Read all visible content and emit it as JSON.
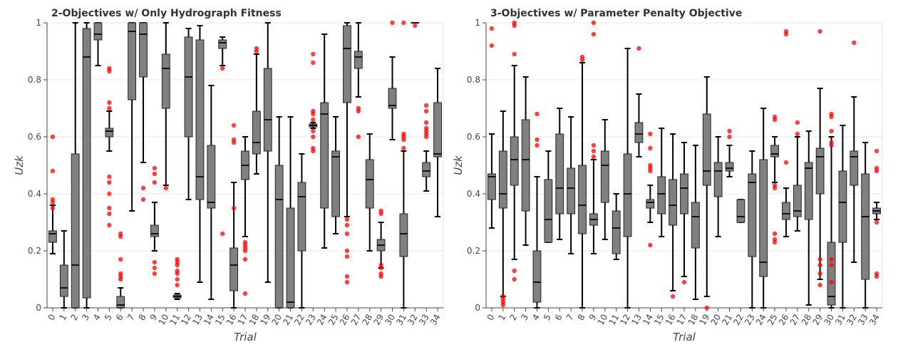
{
  "chart_data": [
    {
      "type": "box",
      "title": "2-Objectives w/ Only Hydrograph Fitness",
      "x_label": "Trial",
      "y_label": "Uzk",
      "ylim": [
        0,
        1
      ],
      "yticks": [
        0,
        0.2,
        0.4,
        0.6,
        0.8,
        1
      ],
      "grid": true,
      "box_color": "#808080",
      "outlier_color": "#ff0000",
      "categories": [
        "0",
        "1",
        "2",
        "3",
        "4",
        "5",
        "6",
        "7",
        "8",
        "9",
        "10",
        "11",
        "12",
        "13",
        "14",
        "15",
        "16",
        "17",
        "18",
        "19",
        "20",
        "21",
        "22",
        "23",
        "24",
        "25",
        "26",
        "27",
        "28",
        "29",
        "30",
        "31",
        "32",
        "33",
        "34"
      ],
      "boxes": [
        {
          "min": 0.19,
          "q1": 0.23,
          "median": 0.26,
          "q3": 0.27,
          "max": 0.36,
          "outliers": [
            0.6,
            0.48,
            0.38,
            0.37,
            0.35
          ]
        },
        {
          "min": 0,
          "q1": 0.04,
          "median": 0.07,
          "q3": 0.15,
          "max": 0.27,
          "outliers": []
        },
        {
          "min": 0,
          "q1": 0,
          "median": 0.15,
          "q3": 0.54,
          "max": 1,
          "outliers": []
        },
        {
          "min": 0,
          "q1": 0.035,
          "median": 0.88,
          "q3": 0.98,
          "max": 1,
          "outliers": []
        },
        {
          "min": 0.85,
          "q1": 0.94,
          "median": 0.96,
          "q3": 1,
          "max": 1,
          "outliers": []
        },
        {
          "min": 0.55,
          "q1": 0.6,
          "median": 0.62,
          "q3": 0.63,
          "max": 0.69,
          "outliers": [
            0.84,
            0.83,
            0.72,
            0.7,
            0.46,
            0.44,
            0.4,
            0.35,
            0.33,
            0.29
          ]
        },
        {
          "min": 0,
          "q1": 0,
          "median": 0.01,
          "q3": 0.04,
          "max": 0.07,
          "outliers": [
            0.26,
            0.25,
            0.17,
            0.12,
            0.11,
            0.1
          ]
        },
        {
          "min": 0.34,
          "q1": 0.73,
          "median": 0.97,
          "q3": 1,
          "max": 1,
          "outliers": []
        },
        {
          "min": 0.51,
          "q1": 0.81,
          "median": 0.96,
          "q3": 1,
          "max": 1,
          "outliers": [
            0.42,
            0.38
          ]
        },
        {
          "min": 0.2,
          "q1": 0.25,
          "median": 0.26,
          "q3": 0.29,
          "max": 0.37,
          "outliers": [
            0.49,
            0.47,
            0.44,
            0.16,
            0.14,
            0.12
          ]
        },
        {
          "min": 0.43,
          "q1": 0.7,
          "median": 0.84,
          "q3": 0.89,
          "max": 1,
          "outliers": [
            0.42
          ]
        },
        {
          "min": 0.03,
          "q1": 0.035,
          "median": 0.04,
          "q3": 0.045,
          "max": 0.05,
          "outliers": [
            0.17,
            0.16,
            0.15,
            0.13,
            0.12,
            0.1,
            0.08
          ]
        },
        {
          "min": 0.38,
          "q1": 0.6,
          "median": 0.81,
          "q3": 0.95,
          "max": 0.98,
          "outliers": []
        },
        {
          "min": 0.09,
          "q1": 0.38,
          "median": 0.46,
          "q3": 0.94,
          "max": 0.99,
          "outliers": []
        },
        {
          "min": 0.03,
          "q1": 0.35,
          "median": 0.37,
          "q3": 0.57,
          "max": 0.78,
          "outliers": []
        },
        {
          "min": 0.85,
          "q1": 0.91,
          "median": 0.93,
          "q3": 0.94,
          "max": 0.95,
          "outliers": [
            0.84,
            0.26
          ]
        },
        {
          "min": 0,
          "q1": 0.06,
          "median": 0.15,
          "q3": 0.21,
          "max": 0.44,
          "outliers": [
            0.64,
            0.59,
            0.58,
            0.35
          ]
        },
        {
          "min": 0.25,
          "q1": 0.45,
          "median": 0.5,
          "q3": 0.55,
          "max": 0.6,
          "outliers": [
            0.23,
            0.22,
            0.21,
            0.2,
            0.17,
            0.05
          ]
        },
        {
          "min": 0.47,
          "q1": 0.54,
          "median": 0.58,
          "q3": 0.69,
          "max": 0.89,
          "outliers": [
            0.91,
            0.9
          ]
        },
        {
          "min": 0.09,
          "q1": 0.55,
          "median": 0.66,
          "q3": 0.84,
          "max": 1,
          "outliers": []
        },
        {
          "min": 0,
          "q1": 0,
          "median": 0.38,
          "q3": 0.5,
          "max": 0.67,
          "outliers": []
        },
        {
          "min": 0,
          "q1": 0,
          "median": 0.02,
          "q3": 0.35,
          "max": 0.67,
          "outliers": []
        },
        {
          "min": 0,
          "q1": 0.2,
          "median": 0.39,
          "q3": 0.44,
          "max": 0.54,
          "outliers": []
        },
        {
          "min": 0.63,
          "q1": 0.635,
          "median": 0.64,
          "q3": 0.645,
          "max": 0.65,
          "outliers": [
            0.89,
            0.86,
            0.69,
            0.68,
            0.66,
            0.62,
            0.6,
            0.56,
            0.55
          ]
        },
        {
          "min": 0.21,
          "q1": 0.35,
          "median": 0.68,
          "q3": 0.72,
          "max": 0.96,
          "outliers": []
        },
        {
          "min": 0.26,
          "q1": 0.32,
          "median": 0.53,
          "q3": 0.55,
          "max": 0.67,
          "outliers": []
        },
        {
          "min": 0.32,
          "q1": 0.72,
          "median": 0.91,
          "q3": 0.99,
          "max": 1,
          "outliers": [
            0.31,
            0.29,
            0.26,
            0.2,
            0.18,
            0.11,
            0.09
          ]
        },
        {
          "min": 0.74,
          "q1": 0.84,
          "median": 0.88,
          "q3": 0.9,
          "max": 1,
          "outliers": [
            0.7,
            0.69,
            0.6
          ]
        },
        {
          "min": 0.2,
          "q1": 0.35,
          "median": 0.45,
          "q3": 0.52,
          "max": 0.61,
          "outliers": []
        },
        {
          "min": 0.14,
          "q1": 0.2,
          "median": 0.22,
          "q3": 0.24,
          "max": 0.3,
          "outliers": [
            0.34,
            0.33,
            0.15,
            0.14,
            0.12,
            0.11
          ]
        },
        {
          "min": 0.59,
          "q1": 0.7,
          "median": 0.71,
          "q3": 0.77,
          "max": 0.88,
          "outliers": [
            1
          ]
        },
        {
          "min": 0,
          "q1": 0.18,
          "median": 0.26,
          "q3": 0.33,
          "max": 0.55,
          "outliers": [
            1,
            0.61,
            0.6,
            0.59,
            0.56
          ]
        },
        {
          "min": 1,
          "q1": 1,
          "median": 1,
          "q3": 1,
          "max": 1,
          "outliers": [
            0.99
          ]
        },
        {
          "min": 0.41,
          "q1": 0.46,
          "median": 0.48,
          "q3": 0.51,
          "max": 0.55,
          "outliers": [
            0.71,
            0.69,
            0.65,
            0.63,
            0.62,
            0.61,
            0.6
          ]
        },
        {
          "min": 0.32,
          "q1": 0.53,
          "median": 0.54,
          "q3": 0.72,
          "max": 0.84,
          "outliers": []
        }
      ]
    },
    {
      "type": "box",
      "title": "3-Objectives w/ Parameter Penalty Objective",
      "x_label": "Trial",
      "y_label": "Uzk",
      "ylim": [
        0,
        1
      ],
      "yticks": [
        0,
        0.2,
        0.4,
        0.6,
        0.8,
        1
      ],
      "grid": true,
      "box_color": "#808080",
      "outlier_color": "#ff0000",
      "categories": [
        "0",
        "1",
        "2",
        "3",
        "4",
        "5",
        "6",
        "7",
        "8",
        "9",
        "10",
        "11",
        "12",
        "13",
        "14",
        "15",
        "16",
        "17",
        "18",
        "19",
        "20",
        "21",
        "22",
        "23",
        "24",
        "25",
        "26",
        "27",
        "28",
        "29",
        "30",
        "31",
        "32",
        "33",
        "34"
      ],
      "boxes": [
        {
          "min": 0.28,
          "q1": 0.38,
          "median": 0.46,
          "q3": 0.47,
          "max": 0.61,
          "outliers": [
            0.98,
            0.92
          ]
        },
        {
          "min": 0.04,
          "q1": 0.35,
          "median": 0.4,
          "q3": 0.55,
          "max": 0.69,
          "outliers": [
            0.04,
            0.03,
            0.02,
            0.01
          ]
        },
        {
          "min": 0.17,
          "q1": 0.43,
          "median": 0.52,
          "q3": 0.6,
          "max": 0.85,
          "outliers": [
            1,
            0.99,
            0.89,
            0.13,
            0.1
          ]
        },
        {
          "min": 0.22,
          "q1": 0.34,
          "median": 0.52,
          "q3": 0.66,
          "max": 0.81,
          "outliers": []
        },
        {
          "min": 0,
          "q1": 0.02,
          "median": 0.09,
          "q3": 0.2,
          "max": 0.46,
          "outliers": [
            0.68,
            0.59,
            0.57
          ]
        },
        {
          "min": 0.23,
          "q1": 0.23,
          "median": 0.31,
          "q3": 0.45,
          "max": 0.55,
          "outliers": []
        },
        {
          "min": 0.24,
          "q1": 0.33,
          "median": 0.42,
          "q3": 0.61,
          "max": 0.7,
          "outliers": []
        },
        {
          "min": 0.19,
          "q1": 0.33,
          "median": 0.42,
          "q3": 0.49,
          "max": 0.67,
          "outliers": []
        },
        {
          "min": 0,
          "q1": 0.26,
          "median": 0.36,
          "q3": 0.5,
          "max": 0.86,
          "outliers": [
            0.88,
            0.87
          ]
        },
        {
          "min": 0.19,
          "q1": 0.29,
          "median": 0.31,
          "q3": 0.33,
          "max": 0.52,
          "outliers": [
            1,
            0.96,
            0.57,
            0.55,
            0.53
          ]
        },
        {
          "min": 0.24,
          "q1": 0.37,
          "median": 0.5,
          "q3": 0.55,
          "max": 0.66,
          "outliers": []
        },
        {
          "min": 0.17,
          "q1": 0.19,
          "median": 0.28,
          "q3": 0.34,
          "max": 0.4,
          "outliers": []
        },
        {
          "min": 0,
          "q1": 0.25,
          "median": 0.4,
          "q3": 0.54,
          "max": 0.91,
          "outliers": []
        },
        {
          "min": 0.53,
          "q1": 0.58,
          "median": 0.61,
          "q3": 0.65,
          "max": 0.75,
          "outliers": [
            0.91
          ]
        },
        {
          "min": 0.3,
          "q1": 0.35,
          "median": 0.37,
          "q3": 0.38,
          "max": 0.43,
          "outliers": [
            0.61,
            0.56,
            0.5,
            0.49,
            0.48,
            0.22
          ]
        },
        {
          "min": 0.25,
          "q1": 0.33,
          "median": 0.4,
          "q3": 0.46,
          "max": 0.63,
          "outliers": []
        },
        {
          "min": 0.06,
          "q1": 0.29,
          "median": 0.36,
          "q3": 0.45,
          "max": 0.61,
          "outliers": [
            0.04
          ]
        },
        {
          "min": 0.11,
          "q1": 0.33,
          "median": 0.42,
          "q3": 0.47,
          "max": 0.58,
          "outliers": [
            0.09
          ]
        },
        {
          "min": 0.03,
          "q1": 0.21,
          "median": 0.32,
          "q3": 0.37,
          "max": 0.57,
          "outliers": []
        },
        {
          "min": 0.04,
          "q1": 0.43,
          "median": 0.48,
          "q3": 0.68,
          "max": 0.81,
          "outliers": [
            0
          ]
        },
        {
          "min": 0.25,
          "q1": 0.39,
          "median": 0.48,
          "q3": 0.51,
          "max": 0.6,
          "outliers": []
        },
        {
          "min": 0.46,
          "q1": 0.48,
          "median": 0.49,
          "q3": 0.51,
          "max": 0.57,
          "outliers": [
            0.62,
            0.6
          ]
        },
        {
          "min": 0.3,
          "q1": 0.3,
          "median": 0.32,
          "q3": 0.38,
          "max": 0.38,
          "outliers": []
        },
        {
          "min": 0,
          "q1": 0.18,
          "median": 0.44,
          "q3": 0.47,
          "max": 0.55,
          "outliers": []
        },
        {
          "min": 0,
          "q1": 0.11,
          "median": 0.16,
          "q3": 0.52,
          "max": 0.7,
          "outliers": []
        },
        {
          "min": 0.44,
          "q1": 0.53,
          "median": 0.54,
          "q3": 0.57,
          "max": 0.6,
          "outliers": [
            0.67,
            0.66,
            0.43,
            0.42,
            0.26,
            0.24,
            0.23
          ]
        },
        {
          "min": 0.25,
          "q1": 0.31,
          "median": 0.33,
          "q3": 0.37,
          "max": 0.42,
          "outliers": [
            0.97,
            0.96,
            0.51
          ]
        },
        {
          "min": 0.27,
          "q1": 0.32,
          "median": 0.34,
          "q3": 0.43,
          "max": 0.6,
          "outliers": [
            0.65,
            0.61
          ]
        },
        {
          "min": 0.01,
          "q1": 0.31,
          "median": 0.49,
          "q3": 0.51,
          "max": 0.62,
          "outliers": []
        },
        {
          "min": 0.1,
          "q1": 0.4,
          "median": 0.53,
          "q3": 0.56,
          "max": 0.77,
          "outliers": [
            0.97,
            0.17,
            0.15,
            0.12,
            0.08
          ]
        },
        {
          "min": 0,
          "q1": 0.01,
          "median": 0.04,
          "q3": 0.23,
          "max": 0.6,
          "outliers": [
            0.68,
            0.67,
            0.62,
            0.58,
            0.57,
            0.17,
            0.15,
            0.09
          ]
        },
        {
          "min": 0,
          "q1": 0.23,
          "median": 0.37,
          "q3": 0.48,
          "max": 0.64,
          "outliers": []
        },
        {
          "min": 0.16,
          "q1": 0.43,
          "median": 0.53,
          "q3": 0.55,
          "max": 0.74,
          "outliers": [
            0.93
          ]
        },
        {
          "min": 0,
          "q1": 0.1,
          "median": 0.32,
          "q3": 0.47,
          "max": 0.58,
          "outliers": []
        },
        {
          "min": 0.31,
          "q1": 0.33,
          "median": 0.34,
          "q3": 0.35,
          "max": 0.37,
          "outliers": [
            0.55,
            0.49,
            0.48,
            0.3,
            0.12,
            0.11
          ]
        }
      ]
    }
  ]
}
